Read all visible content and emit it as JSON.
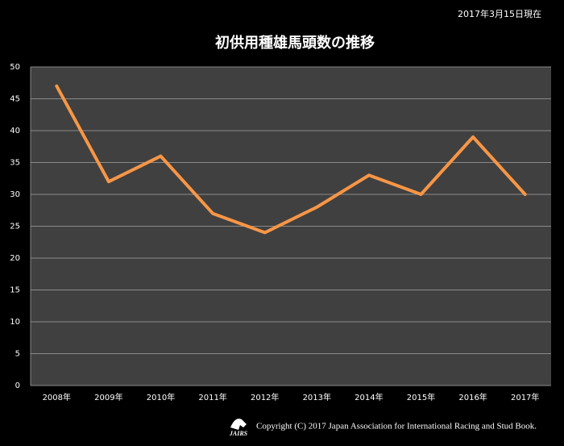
{
  "chart_data": {
    "type": "line",
    "title": "初供用種雄馬頭数の推移",
    "note": "2017年3月15日現在",
    "copyright": "Copyright (C) 2017 Japan Association for International Racing and Stud Book.",
    "logo": "JAIRS",
    "categories": [
      "2008年",
      "2009年",
      "2010年",
      "2011年",
      "2012年",
      "2013年",
      "2014年",
      "2015年",
      "2016年",
      "2017年"
    ],
    "series": [
      {
        "name": "初供用種雄馬頭数",
        "color": "#f79646",
        "values": [
          47,
          32,
          36,
          27,
          24,
          28,
          33,
          30,
          39,
          30
        ]
      }
    ],
    "ylim": [
      0,
      50
    ],
    "yticks": [
      0,
      5,
      10,
      15,
      20,
      25,
      30,
      35,
      40,
      45,
      50
    ],
    "grid": true,
    "legend": false
  }
}
